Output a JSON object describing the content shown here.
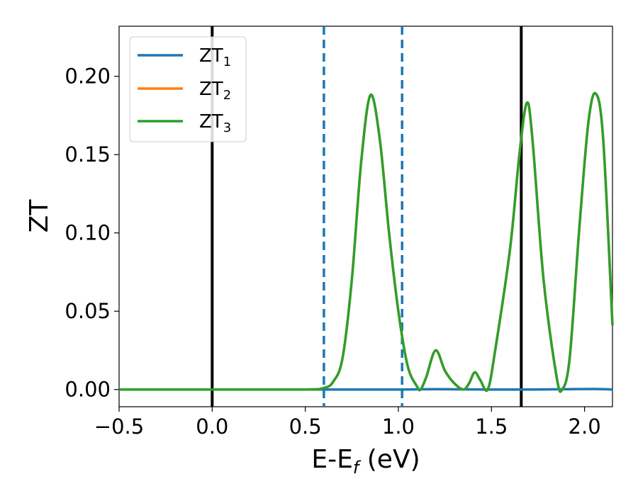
{
  "chart_data": {
    "type": "line",
    "xlabel": "E-E",
    "xlabel_sub": "f",
    "xlabel_unit": " (eV)",
    "ylabel": "ZT",
    "xlim": [
      -0.5,
      2.15
    ],
    "ylim": [
      -0.011,
      0.232
    ],
    "xticks": [
      -0.5,
      0.0,
      0.5,
      1.0,
      1.5,
      2.0
    ],
    "xtick_labels": [
      "−0.5",
      "0.0",
      "0.5",
      "1.0",
      "1.5",
      "2.0"
    ],
    "yticks": [
      0.0,
      0.05,
      0.1,
      0.15,
      0.2
    ],
    "ytick_labels": [
      "0.00",
      "0.05",
      "0.10",
      "0.15",
      "0.20"
    ],
    "grid": false,
    "legend_position": "top-left",
    "series": [
      {
        "name": "ZT",
        "name_sub": "1",
        "color": "#1f77b4",
        "points": [
          [
            -0.5,
            0.0
          ],
          [
            0.0,
            0.0
          ],
          [
            0.5,
            0.0
          ],
          [
            0.6,
            0.0
          ],
          [
            1.0,
            0.0
          ],
          [
            1.2,
            0.0002
          ],
          [
            1.5,
            0.0
          ],
          [
            1.7,
            0.0
          ],
          [
            1.9,
            0.0002
          ],
          [
            2.05,
            0.0003
          ],
          [
            2.15,
            0.0
          ]
        ]
      },
      {
        "name": "ZT",
        "name_sub": "2",
        "color": "#ff7f0e",
        "points": [
          [
            -0.5,
            0.0
          ],
          [
            0.0,
            0.0
          ],
          [
            0.5,
            0.0
          ],
          [
            0.6,
            0.001
          ],
          [
            0.65,
            0.005
          ],
          [
            0.7,
            0.02
          ],
          [
            0.75,
            0.07
          ],
          [
            0.8,
            0.145
          ],
          [
            0.85,
            0.188
          ],
          [
            0.9,
            0.16
          ],
          [
            0.95,
            0.1
          ],
          [
            1.0,
            0.05
          ],
          [
            1.05,
            0.015
          ],
          [
            1.1,
            0.002
          ],
          [
            1.12,
            0.0
          ],
          [
            1.15,
            0.008
          ],
          [
            1.2,
            0.025
          ],
          [
            1.25,
            0.012
          ],
          [
            1.3,
            0.004
          ],
          [
            1.35,
            0.0
          ],
          [
            1.38,
            0.004
          ],
          [
            1.41,
            0.011
          ],
          [
            1.44,
            0.006
          ],
          [
            1.48,
            0.0
          ],
          [
            1.52,
            0.025
          ],
          [
            1.6,
            0.09
          ],
          [
            1.65,
            0.15
          ],
          [
            1.69,
            0.183
          ],
          [
            1.72,
            0.16
          ],
          [
            1.78,
            0.07
          ],
          [
            1.85,
            0.008
          ],
          [
            1.88,
            0.0
          ],
          [
            1.92,
            0.02
          ],
          [
            1.97,
            0.1
          ],
          [
            2.02,
            0.17
          ],
          [
            2.06,
            0.189
          ],
          [
            2.1,
            0.16
          ],
          [
            2.15,
            0.041
          ]
        ]
      },
      {
        "name": "ZT",
        "name_sub": "3",
        "color": "#2ca02c",
        "points": [
          [
            -0.5,
            0.0
          ],
          [
            0.0,
            0.0
          ],
          [
            0.5,
            0.0
          ],
          [
            0.6,
            0.001
          ],
          [
            0.65,
            0.005
          ],
          [
            0.7,
            0.02
          ],
          [
            0.75,
            0.07
          ],
          [
            0.8,
            0.145
          ],
          [
            0.85,
            0.188
          ],
          [
            0.9,
            0.16
          ],
          [
            0.95,
            0.1
          ],
          [
            1.0,
            0.05
          ],
          [
            1.05,
            0.015
          ],
          [
            1.1,
            0.002
          ],
          [
            1.12,
            0.0
          ],
          [
            1.15,
            0.008
          ],
          [
            1.2,
            0.025
          ],
          [
            1.25,
            0.012
          ],
          [
            1.3,
            0.004
          ],
          [
            1.35,
            0.0
          ],
          [
            1.38,
            0.004
          ],
          [
            1.41,
            0.011
          ],
          [
            1.44,
            0.006
          ],
          [
            1.48,
            0.0
          ],
          [
            1.52,
            0.025
          ],
          [
            1.6,
            0.09
          ],
          [
            1.65,
            0.15
          ],
          [
            1.69,
            0.183
          ],
          [
            1.72,
            0.16
          ],
          [
            1.78,
            0.07
          ],
          [
            1.85,
            0.008
          ],
          [
            1.88,
            0.0
          ],
          [
            1.92,
            0.02
          ],
          [
            1.97,
            0.1
          ],
          [
            2.02,
            0.17
          ],
          [
            2.06,
            0.189
          ],
          [
            2.1,
            0.16
          ],
          [
            2.15,
            0.041
          ]
        ]
      }
    ],
    "vlines": [
      {
        "x": 0.0,
        "style": "solid",
        "color": "#000000"
      },
      {
        "x": 1.66,
        "style": "solid",
        "color": "#000000"
      },
      {
        "x": 0.6,
        "style": "dashed",
        "color": "#1f77b4"
      },
      {
        "x": 1.02,
        "style": "dashed",
        "color": "#1f77b4"
      }
    ]
  }
}
